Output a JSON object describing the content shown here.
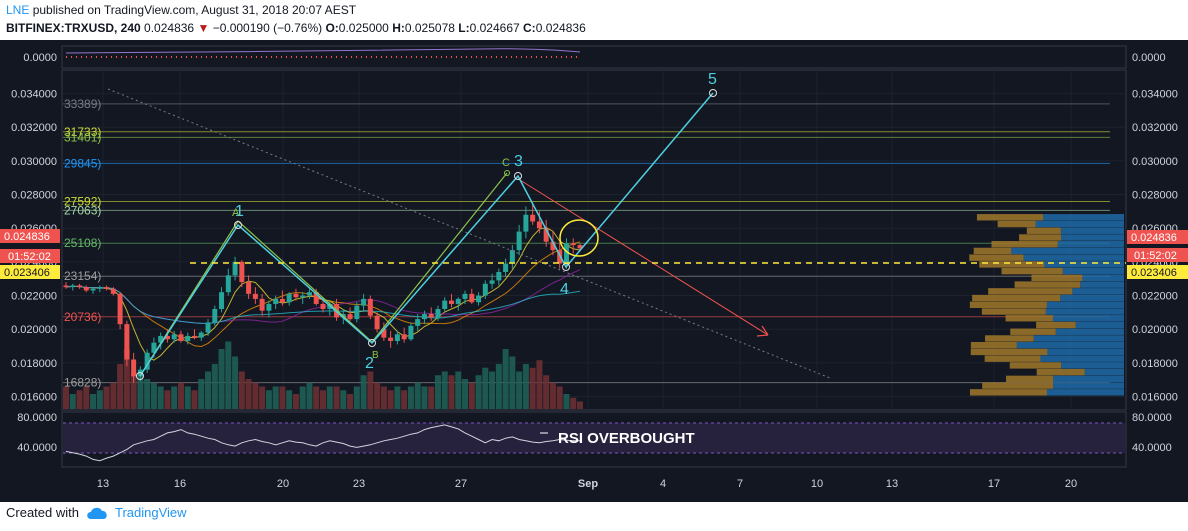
{
  "header": {
    "publisher": "LNE",
    "published_text": "published on TradingView.com, August 31, 2018 20:07 AEST",
    "symbol": "BITFINEX:TRXUSD, 240",
    "last": "0.024836",
    "change": "−0.000190 (−0.76%)",
    "open_label": "O:",
    "open": "0.025000",
    "high_label": "H:",
    "high": "0.025078",
    "low_label": "L:",
    "low": "0.024667",
    "close_label": "C:",
    "close": "0.024836"
  },
  "footer": {
    "created_with": "Created with",
    "brand": "TradingView"
  },
  "colors": {
    "background": "#131722",
    "up": "#26a69a",
    "down": "#ef5350",
    "wave": "#4dd0e1",
    "abc": "#8bc34a",
    "yellow": "#ffeb3b",
    "price_tag": "#ef5350",
    "level_tag": "#ffeb3b"
  },
  "chart_data": {
    "type": "candlestick",
    "y_axis": {
      "ylim": [
        0.0152,
        0.0354
      ],
      "ticks": [
        "0.034000",
        "0.032000",
        "0.030000",
        "0.028000",
        "0.026000",
        "0.024000",
        "0.022000",
        "0.020000",
        "0.018000",
        "0.016000"
      ]
    },
    "x_axis": {
      "ticks": [
        "13",
        "16",
        "20",
        "23",
        "27",
        "Sep",
        "4",
        "7",
        "10",
        "13",
        "17",
        "20"
      ]
    },
    "price_tags": {
      "last": "0.024836",
      "countdown": "01:52:02",
      "level": "0.023406"
    },
    "top_indicator": {
      "label": "0.0000"
    },
    "rsi": {
      "ticks": [
        "80.0000",
        "40.0000"
      ],
      "annotation": "RSI OVERBOUGHT"
    },
    "fib_levels": [
      {
        "label": "33389)",
        "value": 0.03339,
        "color": "#787b86"
      },
      {
        "label": "31733)",
        "value": 0.03173,
        "color": "#cddc39"
      },
      {
        "label": "31401)",
        "value": 0.0314,
        "color": "#8bc34a"
      },
      {
        "label": "29845)",
        "value": 0.02985,
        "color": "#2196f3"
      },
      {
        "label": "27592)",
        "value": 0.02759,
        "color": "#cddc39"
      },
      {
        "label": "27063)",
        "value": 0.02706,
        "color": "#a5d6a7"
      },
      {
        "label": "25108)",
        "value": 0.02511,
        "color": "#66bb6a"
      },
      {
        "label": "23154)",
        "value": 0.02315,
        "color": "#9e9e9e"
      },
      {
        "label": "20736)",
        "value": 0.02074,
        "color": "#ef5350"
      },
      {
        "label": "16828)",
        "value": 0.01683,
        "color": "#9e9e9e"
      }
    ],
    "waves": {
      "labels": [
        "1",
        "2",
        "3",
        "4",
        "5"
      ],
      "abc": [
        "A",
        "B",
        "C"
      ]
    },
    "candles": [
      [
        0.0226,
        0.0228,
        0.0224,
        0.0225
      ],
      [
        0.0225,
        0.0227,
        0.0223,
        0.0226
      ],
      [
        0.0226,
        0.0227,
        0.0224,
        0.0225
      ],
      [
        0.0225,
        0.0226,
        0.0222,
        0.0223
      ],
      [
        0.0223,
        0.0225,
        0.0221,
        0.0224
      ],
      [
        0.0224,
        0.0226,
        0.0222,
        0.0225
      ],
      [
        0.0225,
        0.0226,
        0.0223,
        0.0224
      ],
      [
        0.0224,
        0.0225,
        0.022,
        0.0221
      ],
      [
        0.0221,
        0.0222,
        0.02,
        0.0203
      ],
      [
        0.0203,
        0.0205,
        0.0178,
        0.0182
      ],
      [
        0.0182,
        0.0186,
        0.0168,
        0.0172
      ],
      [
        0.0172,
        0.0178,
        0.0169,
        0.0176
      ],
      [
        0.0176,
        0.0188,
        0.0174,
        0.0186
      ],
      [
        0.0186,
        0.0195,
        0.0183,
        0.0192
      ],
      [
        0.0192,
        0.0198,
        0.0188,
        0.0196
      ],
      [
        0.0196,
        0.02,
        0.0192,
        0.0194
      ],
      [
        0.0194,
        0.0199,
        0.0192,
        0.0197
      ],
      [
        0.0197,
        0.0199,
        0.0192,
        0.0193
      ],
      [
        0.0193,
        0.0198,
        0.0191,
        0.0196
      ],
      [
        0.0196,
        0.02,
        0.0194,
        0.0195
      ],
      [
        0.0195,
        0.0199,
        0.0193,
        0.0198
      ],
      [
        0.0198,
        0.0206,
        0.0196,
        0.0204
      ],
      [
        0.0204,
        0.0214,
        0.0202,
        0.0212
      ],
      [
        0.0212,
        0.0225,
        0.021,
        0.0222
      ],
      [
        0.0222,
        0.0236,
        0.022,
        0.0232
      ],
      [
        0.0232,
        0.0243,
        0.0229,
        0.024
      ],
      [
        0.024,
        0.0241,
        0.0225,
        0.0228
      ],
      [
        0.0228,
        0.0232,
        0.0218,
        0.0221
      ],
      [
        0.0221,
        0.0225,
        0.0215,
        0.0218
      ],
      [
        0.0218,
        0.0221,
        0.0208,
        0.0211
      ],
      [
        0.0211,
        0.0217,
        0.0207,
        0.0215
      ],
      [
        0.0215,
        0.022,
        0.0212,
        0.0218
      ],
      [
        0.0218,
        0.0223,
        0.0214,
        0.0216
      ],
      [
        0.0216,
        0.0222,
        0.0214,
        0.0221
      ],
      [
        0.0221,
        0.0224,
        0.0217,
        0.0219
      ],
      [
        0.0219,
        0.0222,
        0.0215,
        0.022
      ],
      [
        0.022,
        0.0224,
        0.0218,
        0.0222
      ],
      [
        0.0222,
        0.0224,
        0.0214,
        0.0215
      ],
      [
        0.0215,
        0.0219,
        0.021,
        0.0212
      ],
      [
        0.0212,
        0.0217,
        0.0208,
        0.0215
      ],
      [
        0.0215,
        0.0218,
        0.0205,
        0.0207
      ],
      [
        0.0207,
        0.0212,
        0.0203,
        0.0209
      ],
      [
        0.0209,
        0.0213,
        0.0205,
        0.0206
      ],
      [
        0.0206,
        0.0216,
        0.0204,
        0.0214
      ],
      [
        0.0214,
        0.0221,
        0.0211,
        0.0218
      ],
      [
        0.0218,
        0.022,
        0.0206,
        0.0208
      ],
      [
        0.0208,
        0.021,
        0.0198,
        0.02
      ],
      [
        0.02,
        0.0204,
        0.0193,
        0.0195
      ],
      [
        0.0195,
        0.0199,
        0.0189,
        0.0193
      ],
      [
        0.0193,
        0.0199,
        0.0191,
        0.0197
      ],
      [
        0.0197,
        0.0201,
        0.0192,
        0.0194
      ],
      [
        0.0194,
        0.0204,
        0.0193,
        0.0202
      ],
      [
        0.0202,
        0.0209,
        0.0199,
        0.0206
      ],
      [
        0.0206,
        0.0211,
        0.0203,
        0.0209
      ],
      [
        0.0209,
        0.0213,
        0.0205,
        0.0207
      ],
      [
        0.0207,
        0.0214,
        0.0205,
        0.0212
      ],
      [
        0.0212,
        0.0219,
        0.021,
        0.0217
      ],
      [
        0.0217,
        0.0221,
        0.0213,
        0.0215
      ],
      [
        0.0215,
        0.0219,
        0.0211,
        0.0218
      ],
      [
        0.0218,
        0.0223,
        0.0215,
        0.0221
      ],
      [
        0.0221,
        0.0224,
        0.0215,
        0.0216
      ],
      [
        0.0216,
        0.0222,
        0.0214,
        0.022
      ],
      [
        0.022,
        0.0229,
        0.0218,
        0.0227
      ],
      [
        0.0227,
        0.0233,
        0.0224,
        0.0229
      ],
      [
        0.0229,
        0.0236,
        0.0226,
        0.0234
      ],
      [
        0.0234,
        0.0242,
        0.0231,
        0.0239
      ],
      [
        0.0239,
        0.025,
        0.0236,
        0.0247
      ],
      [
        0.0247,
        0.0262,
        0.0244,
        0.0258
      ],
      [
        0.0258,
        0.0273,
        0.0254,
        0.0268
      ],
      [
        0.0268,
        0.0274,
        0.0262,
        0.0264
      ],
      [
        0.0264,
        0.027,
        0.0257,
        0.026
      ],
      [
        0.026,
        0.0265,
        0.0249,
        0.0252
      ],
      [
        0.0252,
        0.0258,
        0.0244,
        0.0247
      ],
      [
        0.0247,
        0.0252,
        0.0236,
        0.0239
      ],
      [
        0.0239,
        0.0254,
        0.0236,
        0.0251
      ],
      [
        0.0251,
        0.0254,
        0.0245,
        0.025
      ],
      [
        0.025,
        0.0251,
        0.0246,
        0.0248
      ]
    ],
    "volumes": [
      0.3,
      0.2,
      0.25,
      0.3,
      0.2,
      0.25,
      0.3,
      0.35,
      0.6,
      0.8,
      0.5,
      0.45,
      0.4,
      0.35,
      0.3,
      0.25,
      0.3,
      0.35,
      0.3,
      0.25,
      0.4,
      0.5,
      0.6,
      0.8,
      0.9,
      0.7,
      0.5,
      0.4,
      0.35,
      0.3,
      0.25,
      0.3,
      0.3,
      0.25,
      0.2,
      0.3,
      0.35,
      0.3,
      0.25,
      0.3,
      0.3,
      0.25,
      0.2,
      0.3,
      0.45,
      0.5,
      0.35,
      0.3,
      0.25,
      0.3,
      0.25,
      0.3,
      0.35,
      0.3,
      0.3,
      0.45,
      0.5,
      0.45,
      0.5,
      0.4,
      0.35,
      0.45,
      0.55,
      0.5,
      0.6,
      0.8,
      0.7,
      0.5,
      0.6,
      0.55,
      0.65,
      0.45,
      0.35,
      0.3,
      0.2,
      0.15,
      0.1
    ],
    "volume_profile": [
      [
        0.02665,
        0.45,
        0.55
      ],
      [
        0.02625,
        0.3,
        0.7
      ],
      [
        0.02585,
        0.35,
        0.65
      ],
      [
        0.02545,
        0.4,
        0.6
      ],
      [
        0.02505,
        0.5,
        0.5
      ],
      [
        0.02465,
        0.25,
        0.75
      ],
      [
        0.02425,
        0.35,
        0.65
      ],
      [
        0.02385,
        0.45,
        0.55
      ],
      [
        0.02345,
        0.5,
        0.5
      ],
      [
        0.02305,
        0.55,
        0.45
      ],
      [
        0.02265,
        0.6,
        0.4
      ],
      [
        0.02225,
        0.62,
        0.38
      ],
      [
        0.02185,
        0.58,
        0.42
      ],
      [
        0.02145,
        0.5,
        0.5
      ],
      [
        0.02105,
        0.45,
        0.55
      ],
      [
        0.02065,
        0.4,
        0.6
      ],
      [
        0.02025,
        0.45,
        0.55
      ],
      [
        0.01985,
        0.4,
        0.6
      ],
      [
        0.01945,
        0.35,
        0.65
      ],
      [
        0.01905,
        0.3,
        0.7
      ],
      [
        0.01865,
        0.5,
        0.5
      ],
      [
        0.01825,
        0.4,
        0.6
      ],
      [
        0.01785,
        0.45,
        0.55
      ],
      [
        0.01745,
        0.55,
        0.45
      ],
      [
        0.01705,
        0.4,
        0.6
      ],
      [
        0.01665,
        0.5,
        0.5
      ],
      [
        0.01625,
        0.5,
        0.5
      ]
    ],
    "vp_max": 155,
    "rsi_values": [
      42,
      40,
      38,
      35,
      30,
      28,
      32,
      35,
      40,
      45,
      52,
      55,
      58,
      60,
      65,
      70,
      72,
      75,
      70,
      68,
      65,
      62,
      60,
      55,
      52,
      50,
      55,
      58,
      60,
      57,
      55,
      52,
      55,
      58,
      56,
      55,
      52,
      50,
      55,
      58,
      56,
      54,
      50,
      48,
      50,
      52,
      55,
      58,
      60,
      62,
      65,
      68,
      70,
      75,
      78,
      80,
      82,
      79,
      76,
      70,
      65,
      60,
      55,
      60,
      58,
      62,
      64,
      60,
      58,
      56,
      55,
      57,
      58,
      60,
      59,
      58,
      58
    ]
  }
}
